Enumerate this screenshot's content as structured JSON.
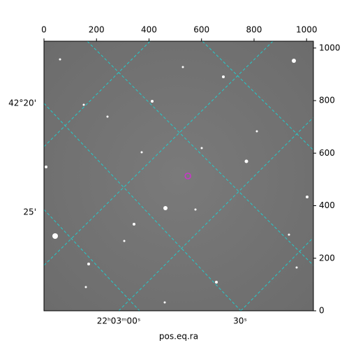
{
  "chart_data": {
    "type": "image",
    "xlabel": "pos.eq.ra",
    "xlim": [
      0,
      1026
    ],
    "ylim": [
      0,
      1026
    ],
    "xticks": [
      0,
      200,
      400,
      600,
      800,
      1000
    ],
    "yticks": [
      0,
      200,
      400,
      600,
      800,
      1000
    ],
    "ra_labels": [
      "22ʰ03ᵐ00ˢ",
      "30ˢ"
    ],
    "dec_labels": [
      "42°20'",
      "25'"
    ],
    "marker": {
      "x": 548,
      "y": 513,
      "color": "#cc33cc"
    },
    "grid_color": "#22cccc"
  }
}
